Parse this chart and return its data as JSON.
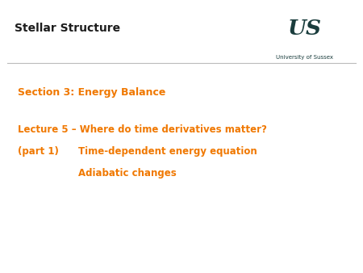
{
  "background_color": "#ffffff",
  "header_title": "Stellar Structure",
  "header_title_color": "#1c1c1c",
  "header_title_fontsize": 10,
  "header_title_fontweight": "bold",
  "header_line_color": "#bbbbbb",
  "logo_text_us": "US",
  "logo_text_university": "University of Sussex",
  "logo_color": "#1a3d3d",
  "text_color_orange": "#f07800",
  "section_text": "Section 3: Energy Balance",
  "section_fontsize": 9,
  "section_fontweight": "bold",
  "line1_text": "Lecture 5 – Where do time derivatives matter?",
  "line1_fontsize": 8.5,
  "line1_fontweight": "bold",
  "line2a_text": "(part 1)",
  "line2b_text": "Time-dependent energy equation",
  "line2_fontsize": 8.5,
  "line2_fontweight": "bold",
  "line3_text": "Adiabatic changes",
  "line3_fontsize": 8.5,
  "line3_fontweight": "bold"
}
